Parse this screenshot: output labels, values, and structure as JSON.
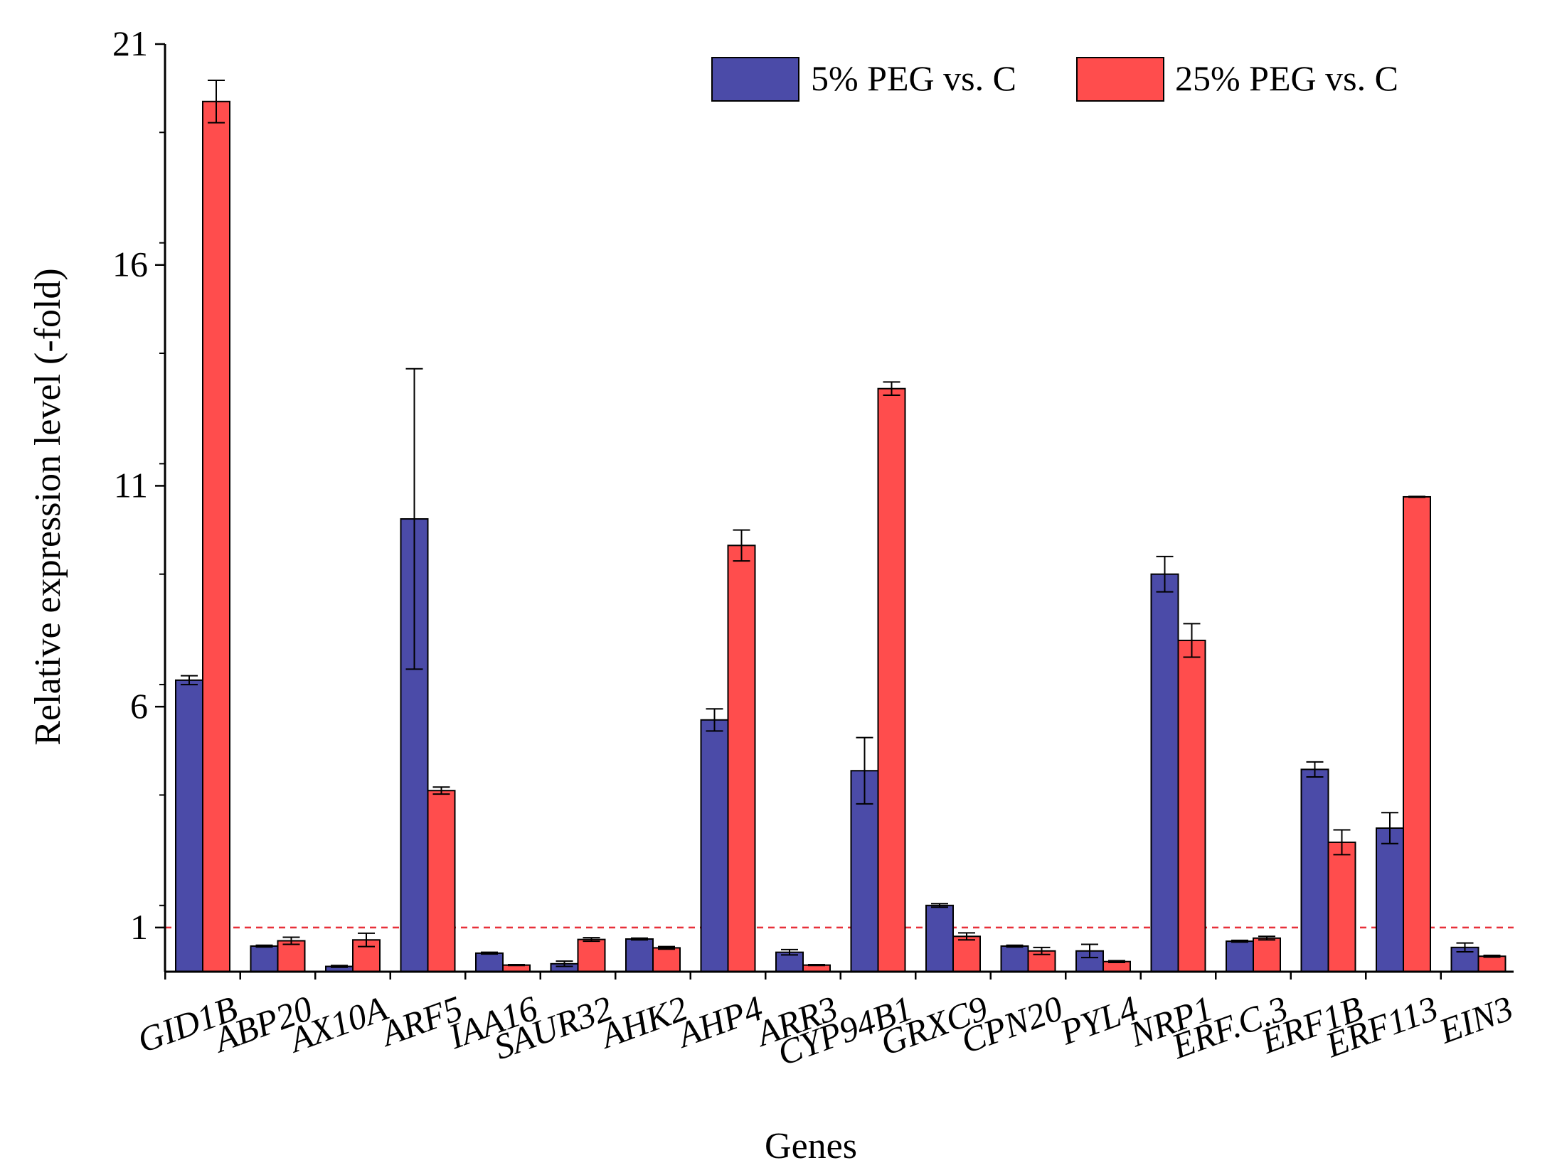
{
  "chart_data": {
    "type": "bar",
    "title": "",
    "xlabel": "Genes",
    "ylabel": "Relative expression level (-fold)",
    "ylim": [
      0,
      21
    ],
    "yticks": [
      1,
      6,
      11,
      16,
      21
    ],
    "reference_line": 1,
    "categories": [
      "GID1B",
      "ABP20",
      "AX10A",
      "ARF5",
      "IAA16",
      "SAUR32",
      "AHK2",
      "AHP4",
      "ARR3",
      "CYP94B1",
      "GRXC9",
      "CPN20",
      "PYL4",
      "NRP1",
      "ERF.C.3",
      "ERF1B",
      "ERF113",
      "EIN3"
    ],
    "series": [
      {
        "name": "5% PEG vs. C",
        "color": "#4B4BA8",
        "values": [
          6.6,
          0.58,
          0.12,
          10.25,
          0.42,
          0.18,
          0.74,
          5.7,
          0.44,
          4.55,
          1.5,
          0.58,
          0.47,
          9.0,
          0.69,
          4.58,
          3.25,
          0.55
        ],
        "errors": [
          0.1,
          0.02,
          0.02,
          3.4,
          0.02,
          0.06,
          0.02,
          0.25,
          0.06,
          0.75,
          0.04,
          0.02,
          0.15,
          0.4,
          0.02,
          0.17,
          0.35,
          0.1
        ]
      },
      {
        "name": "25% PEG vs. C",
        "color": "#FF4D4D",
        "values": [
          19.7,
          0.7,
          0.72,
          4.1,
          0.15,
          0.73,
          0.54,
          9.65,
          0.15,
          13.2,
          0.8,
          0.47,
          0.23,
          7.5,
          0.76,
          2.93,
          10.75,
          0.35
        ],
        "errors": [
          0.48,
          0.08,
          0.15,
          0.08,
          0.01,
          0.04,
          0.03,
          0.35,
          0.01,
          0.15,
          0.08,
          0.08,
          0.02,
          0.38,
          0.04,
          0.28,
          0.01,
          0.02
        ]
      }
    ],
    "legend_position": "top-right"
  }
}
